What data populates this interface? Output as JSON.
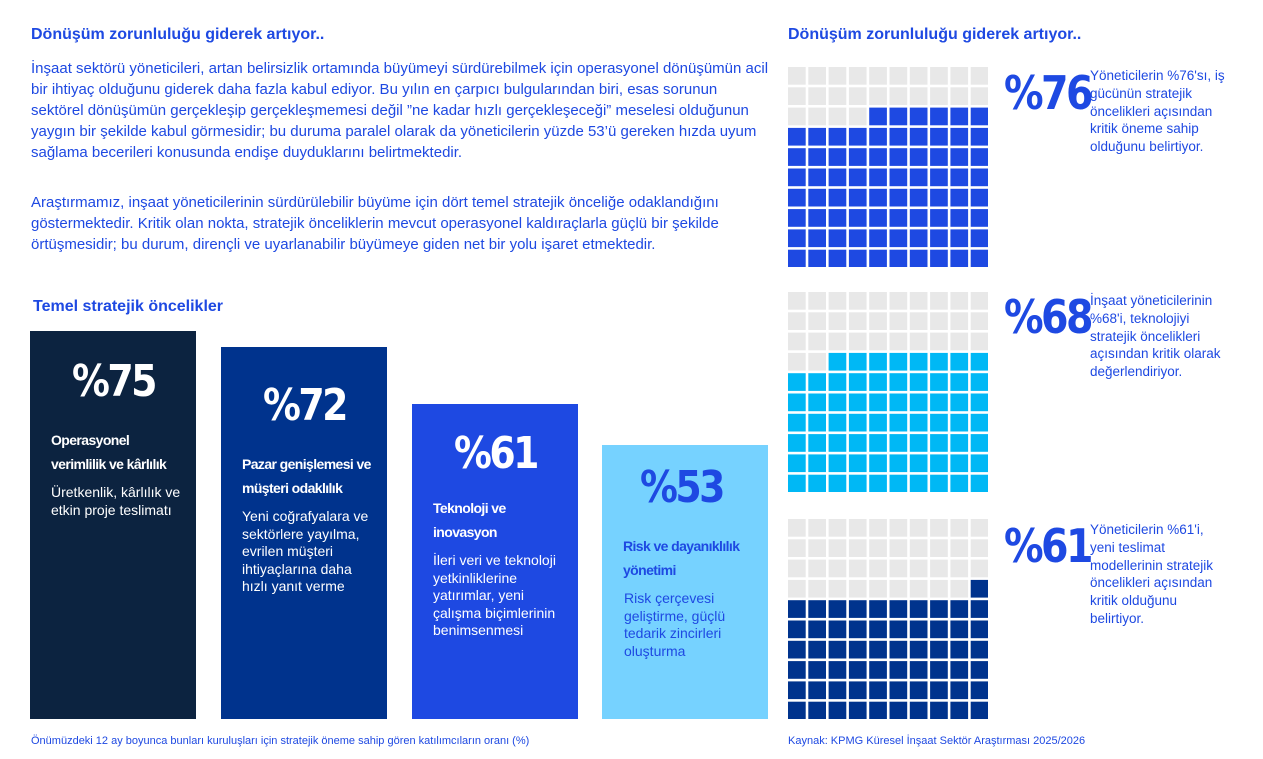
{
  "left": {
    "heading": "Dönüşüm zorunluluğu giderek artıyor..",
    "paragraph1": "İnşaat sektörü yöneticileri, artan belirsizlik ortamında büyümeyi sürdürebilmek için operasyonel dönüşümün acil bir ihtiyaç olduğunu giderek daha fazla kabul ediyor. Bu yılın en çarpıcı bulgularından biri, esas sorunun sektörel dönüşümün gerçekleşip gerçekleşmemesi değil ”ne kadar hızlı gerçekleşeceği” meselesi olduğunun yaygın bir şekilde kabul görmesidir; bu duruma paralel olarak da yöneticilerin yüzde 53’ü gereken hızda uyum sağlama becerileri konusunda endişe duyduklarını belirtmektedir.",
    "paragraph2": "Araştırmamız, inşaat yöneticilerinin sürdürülebilir büyüme için dört temel stratejik önceliğe odaklandığını göstermektedir. Kritik olan nokta, stratejik önceliklerin mevcut operasyonel kaldıraçlarla güçlü bir şekilde örtüşmesidir; bu durum, dirençli ve uyarlanabilir büyümeye giden net bir yolu işaret etmektedir.",
    "chart_heading": "Temel stratejik öncelikler",
    "footnote": "Önümüzdeki 12 ay boyunca bunları kuruluşları için stratejik öneme sahip gören katılımcıların oranı (%)"
  },
  "right": {
    "heading": "Dönüşüm zorunluluğu giderek artıyor..",
    "source": "Kaynak: KPMG Küresel İnşaat Sektör Araştırması 2025/2026"
  },
  "chart_data": [
    {
      "type": "bar",
      "title": "Temel stratejik öncelikler",
      "ylim": [
        0,
        100
      ],
      "bars": [
        {
          "label": "%75",
          "value": 75,
          "title": "Operasyonel verimlilik ve kârlılık",
          "desc": "Üretkenlik, kârlılık ve etkin proje teslimatı",
          "color": "#0c2340",
          "text_color": "#ffffff"
        },
        {
          "label": "%72",
          "value": 72,
          "title": "Pazar genişlemesi ve müşteri odaklılık",
          "desc": "Yeni coğrafyalara ve sektörlere yayılma, evrilen müşteri ihtiyaçlarına daha hızlı yanıt verme",
          "color": "#00338d",
          "text_color": "#ffffff"
        },
        {
          "label": "%61",
          "value": 61,
          "title": "Teknoloji ve inovasyon",
          "desc": "İleri veri ve teknoloji yetkinliklerine yatırımlar, yeni çalışma biçimlerinin benimsenmesi",
          "color": "#1e49e2",
          "text_color": "#ffffff"
        },
        {
          "label": "%53",
          "value": 53,
          "title": "Risk ve dayanıklılık yönetimi",
          "desc": "Risk çerçevesi geliştirme, güçlü tedarik zincirleri oluşturma",
          "color": "#76d2ff",
          "text_color": "#1e49e2"
        }
      ]
    },
    {
      "type": "waffle",
      "grid": [
        10,
        10
      ],
      "items": [
        {
          "label": "%76",
          "value": 76,
          "desc": "Yöneticilerin %76'sı, iş gücünün stratejik öncelikleri açısından kritik öneme sahip olduğunu belirtiyor.",
          "color": "#1e49e2"
        },
        {
          "label": "%68",
          "value": 68,
          "desc": "İnşaat yöneticilerinin %68'i, teknolojiyi stratejik öncelikleri açısından kritik olarak değerlendiriyor.",
          "color": "#00b8f5"
        },
        {
          "label": "%61",
          "value": 61,
          "desc": "Yöneticilerin %61'i, yeni teslimat modellerinin stratejik öncelikleri açısından kritik olduğunu belirtiyor.",
          "color": "#00338d"
        }
      ],
      "empty_color": "#e8e8e8"
    }
  ]
}
